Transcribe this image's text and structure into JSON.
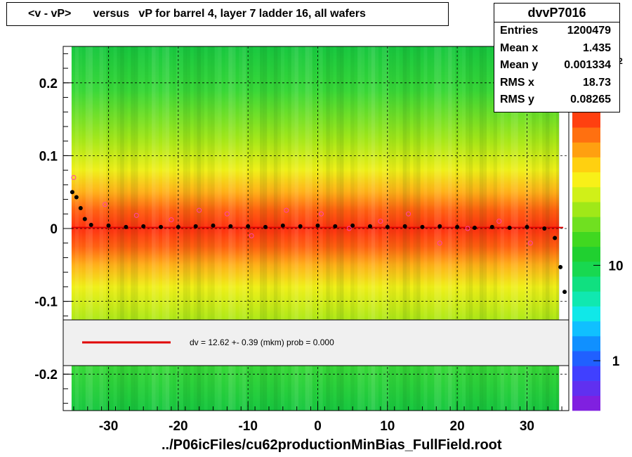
{
  "title": "<v - vP>       versus   vP for barrel 4, layer 7 ladder 16, all wafers",
  "stats": {
    "name": "dvvP7016",
    "rows": [
      {
        "label": "Entries",
        "value": "1200479"
      },
      {
        "label": "Mean x",
        "value": "1.435"
      },
      {
        "label": "Mean y",
        "value": "0.001334"
      },
      {
        "label": "RMS x",
        "value": "18.73"
      },
      {
        "label": "RMS y",
        "value": "0.08265"
      }
    ]
  },
  "palette_axis": {
    "ticks": [
      "1",
      "10"
    ],
    "exponent_fragment": "0",
    "exponent_sup": "2"
  },
  "fit_legend": {
    "text": "dv =    12.62 +-  0.39 (mkm) prob = 0.000",
    "line_color": "#e00000"
  },
  "x_axis_title": "../P06icFiles/cu62productionMinBias_FullField.root",
  "colors": {
    "plot_background": "#ffffff",
    "profile_points": "#000000",
    "open_markers": "#ff44aa",
    "fit_line": "#e00000"
  },
  "chart_data": {
    "type": "heatmap",
    "title": "<v - vP>       versus   vP for barrel 4, layer 7 ladder 16, all wafers",
    "xlabel": "../P06icFiles/cu62productionMinBias_FullField.root",
    "ylabel": "",
    "xlim": [
      -36.5,
      36
    ],
    "ylim": [
      -0.25,
      0.25
    ],
    "x_ticks": [
      -30,
      -20,
      -10,
      0,
      10,
      20,
      30
    ],
    "y_ticks": [
      -0.2,
      -0.1,
      0,
      0.1,
      0.2
    ],
    "x_tick_labels": [
      "-30",
      "-20",
      "-10",
      "0",
      "10",
      "20",
      "30"
    ],
    "y_tick_labels": [
      "-0.2",
      "-0.1",
      "0",
      "0.1",
      "0.2"
    ],
    "grid": true,
    "log_z": true,
    "z_range": [
      0.3,
      400
    ],
    "fit": {
      "type": "constant",
      "value_mkm": 12.62,
      "error_mkm": 0.39,
      "prob": 0.0
    },
    "profile_series": {
      "name": "",
      "x": [
        -35.2,
        -34.6,
        -34.0,
        -33.4,
        -32.5,
        -30.0,
        -27.5,
        -25.0,
        -22.5,
        -20.0,
        -17.5,
        -15.0,
        -12.5,
        -10.0,
        -7.5,
        -5.0,
        -2.5,
        0.0,
        2.5,
        5.0,
        7.5,
        10.0,
        12.5,
        15.0,
        17.5,
        20.0,
        22.5,
        25.0,
        27.5,
        30.0,
        32.5,
        34.0,
        34.8,
        35.4
      ],
      "y": [
        0.05,
        0.043,
        0.028,
        0.013,
        0.005,
        0.004,
        0.002,
        0.003,
        0.002,
        0.002,
        0.003,
        0.004,
        0.003,
        0.003,
        0.002,
        0.004,
        0.003,
        0.004,
        0.003,
        0.004,
        0.003,
        0.002,
        0.003,
        0.002,
        0.003,
        0.002,
        0.001,
        0.002,
        0.001,
        0.002,
        0.0,
        -0.013,
        -0.053,
        -0.087
      ]
    },
    "open_marker_series": {
      "name": "",
      "x": [
        -35.0,
        -30.5,
        -26.0,
        -21.0,
        -17.0,
        -13.0,
        -9.5,
        -4.5,
        0.5,
        4.5,
        9.0,
        13.0,
        17.5,
        21.5,
        26.0,
        30.5
      ],
      "y": [
        0.07,
        0.033,
        0.018,
        0.012,
        0.025,
        0.02,
        -0.01,
        0.025,
        0.02,
        0.0,
        0.01,
        0.02,
        -0.02,
        0.0,
        0.01,
        -0.02
      ]
    }
  }
}
